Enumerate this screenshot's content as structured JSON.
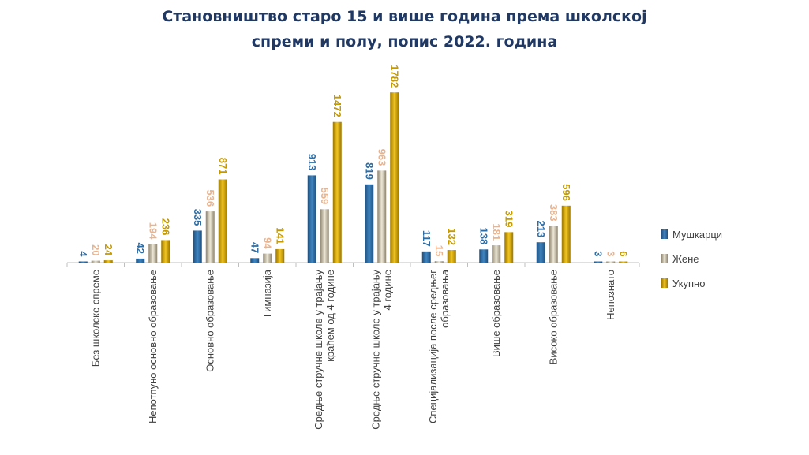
{
  "title": {
    "line1": "Становништво старо 15 и више година према школској",
    "line2": "спреми и полу, попис 2022. година"
  },
  "colors": {
    "men": "#2e6da4",
    "women": "#c9bfa6",
    "total": "#d3a400",
    "men_label": "#2e6da4",
    "women_label": "#e8b48f",
    "total_label": "#c59a00"
  },
  "chart_data": {
    "type": "bar",
    "categories": [
      [
        "Без школске спреме"
      ],
      [
        "Непотпуно основно образовање"
      ],
      [
        "Основно образовање"
      ],
      [
        "Гимназија"
      ],
      [
        "Средње стручне школе у трајању",
        "краћем од 4 године"
      ],
      [
        "Средње стручне школе у трајању",
        "4 године"
      ],
      [
        "Специјализација после средњег",
        "образовања"
      ],
      [
        "Више образовање"
      ],
      [
        "Високо образовање"
      ],
      [
        "Непознато"
      ]
    ],
    "series": [
      {
        "name": "Мушкарци",
        "values": [
          4,
          42,
          335,
          47,
          913,
          819,
          117,
          138,
          213,
          3
        ]
      },
      {
        "name": "Жене",
        "values": [
          20,
          194,
          536,
          94,
          559,
          963,
          15,
          181,
          383,
          3
        ]
      },
      {
        "name": "Укупно",
        "values": [
          24,
          236,
          871,
          141,
          1472,
          1782,
          132,
          319,
          596,
          6
        ]
      }
    ],
    "ylim": [
      0,
      1800
    ],
    "grid": false,
    "legend_position": "right"
  }
}
